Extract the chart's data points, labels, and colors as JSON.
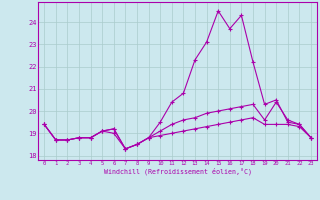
{
  "xlabel": "Windchill (Refroidissement éolien,°C)",
  "background_color": "#cce8ee",
  "line_color": "#aa00aa",
  "grid_color": "#aacccc",
  "x_ticks": [
    0,
    1,
    2,
    3,
    4,
    5,
    6,
    7,
    8,
    9,
    10,
    11,
    12,
    13,
    14,
    15,
    16,
    17,
    18,
    19,
    20,
    21,
    22,
    23
  ],
  "y_ticks": [
    18,
    19,
    20,
    21,
    22,
    23,
    24
  ],
  "ylim": [
    17.8,
    24.9
  ],
  "xlim": [
    -0.5,
    23.5
  ],
  "series": [
    [
      19.4,
      18.7,
      18.7,
      18.8,
      18.8,
      19.1,
      19.2,
      18.3,
      18.5,
      18.8,
      18.9,
      19.0,
      19.1,
      19.2,
      19.3,
      19.4,
      19.5,
      19.6,
      19.7,
      19.4,
      19.4,
      19.4,
      19.3,
      18.8
    ],
    [
      19.4,
      18.7,
      18.7,
      18.8,
      18.8,
      19.1,
      19.0,
      18.3,
      18.5,
      18.8,
      19.5,
      20.4,
      20.8,
      22.3,
      23.1,
      24.5,
      23.7,
      24.3,
      22.2,
      20.3,
      20.5,
      19.5,
      19.4,
      18.8
    ],
    [
      19.4,
      18.7,
      18.7,
      18.8,
      18.8,
      19.1,
      19.2,
      18.3,
      18.5,
      18.8,
      19.1,
      19.4,
      19.6,
      19.7,
      19.9,
      20.0,
      20.1,
      20.2,
      20.3,
      19.6,
      20.4,
      19.6,
      19.4,
      18.8
    ]
  ]
}
